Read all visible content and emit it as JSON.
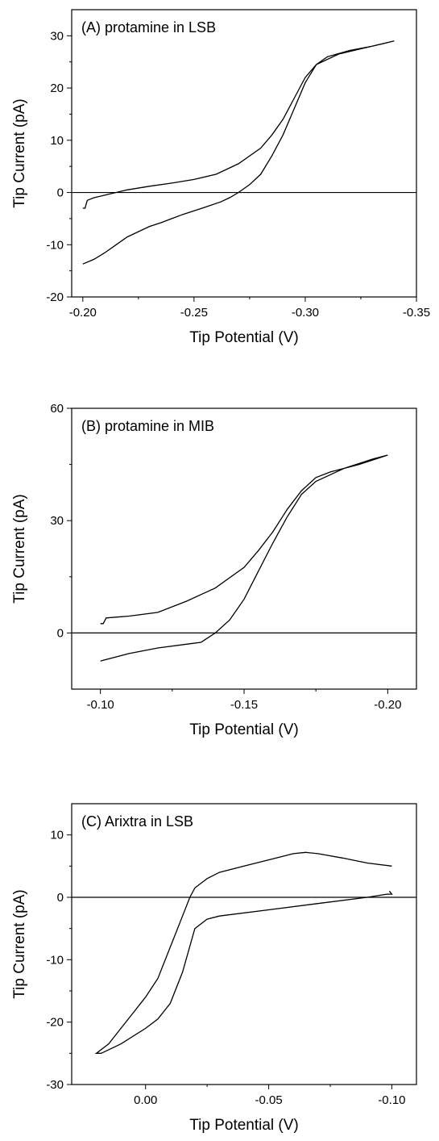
{
  "chart_data": [
    {
      "type": "line",
      "title": "(A) protamine in LSB",
      "xlabel": "Tip Potential (V)",
      "ylabel": "Tip Current (pA)",
      "xlim": [
        -0.195,
        -0.35
      ],
      "ylim": [
        -20,
        35
      ],
      "xticks": [
        -0.2,
        -0.25,
        -0.3,
        -0.35
      ],
      "xtick_labels": [
        "-0.20",
        "-0.25",
        "-0.30",
        "-0.35"
      ],
      "yticks": [
        -20,
        -10,
        0,
        10,
        20,
        30
      ],
      "ytick_labels": [
        "-20",
        "-10",
        "0",
        "10",
        "20",
        "30"
      ],
      "zero_line": 0,
      "series": [
        {
          "x": [
            -0.2,
            -0.201,
            -0.202,
            -0.205,
            -0.21,
            -0.215,
            -0.22,
            -0.23,
            -0.24,
            -0.25,
            -0.26,
            -0.27,
            -0.28,
            -0.285,
            -0.29,
            -0.295,
            -0.3,
            -0.305,
            -0.31,
            -0.32,
            -0.33,
            -0.34,
            -0.335,
            -0.325,
            -0.315,
            -0.305,
            -0.3,
            -0.295,
            -0.29,
            -0.285,
            -0.28,
            -0.275,
            -0.27,
            -0.266,
            -0.262,
            -0.255,
            -0.25,
            -0.245,
            -0.24,
            -0.235,
            -0.23,
            -0.225,
            -0.22,
            -0.215,
            -0.21,
            -0.205,
            -0.2
          ],
          "y": [
            -3,
            -3,
            -1.5,
            -1,
            -0.5,
            0,
            0.5,
            1.2,
            1.8,
            2.5,
            3.5,
            5.5,
            8.5,
            11,
            14,
            18,
            22,
            24.5,
            26,
            27.2,
            28,
            29,
            28.5,
            27.5,
            26.5,
            24.5,
            21,
            16,
            11,
            7,
            3.5,
            1.5,
            0,
            -1,
            -1.8,
            -2.8,
            -3.5,
            -4.2,
            -5,
            -5.8,
            -6.5,
            -7.5,
            -8.5,
            -10,
            -11.5,
            -12.8,
            -13.7
          ]
        }
      ]
    },
    {
      "type": "line",
      "title": "(B) protamine in MIB",
      "xlabel": "Tip Potential (V)",
      "ylabel": "Tip Current (pA)",
      "xlim": [
        -0.09,
        -0.21
      ],
      "ylim": [
        -15,
        60
      ],
      "xticks": [
        -0.1,
        -0.15,
        -0.2
      ],
      "xtick_labels": [
        "-0.10",
        "-0.15",
        "-0.20"
      ],
      "yticks": [
        0,
        30,
        60
      ],
      "ytick_labels": [
        "0",
        "30",
        "60"
      ],
      "zero_line": 0,
      "series": [
        {
          "x": [
            -0.1,
            -0.101,
            -0.102,
            -0.11,
            -0.12,
            -0.13,
            -0.14,
            -0.15,
            -0.155,
            -0.16,
            -0.165,
            -0.17,
            -0.175,
            -0.18,
            -0.19,
            -0.2,
            -0.195,
            -0.185,
            -0.175,
            -0.17,
            -0.165,
            -0.16,
            -0.155,
            -0.15,
            -0.145,
            -0.14,
            -0.135,
            -0.13,
            -0.12,
            -0.11,
            -0.1
          ],
          "y": [
            2.5,
            2.5,
            4,
            4.5,
            5.5,
            8.5,
            12,
            17.5,
            22,
            27,
            33,
            38,
            41.5,
            43,
            45,
            47.5,
            46.5,
            44,
            40.5,
            37,
            31,
            24,
            16.5,
            9,
            3.5,
            0,
            -2.5,
            -3,
            -4,
            -5.5,
            -7.5
          ]
        }
      ]
    },
    {
      "type": "line",
      "title": "(C) Arixtra in LSB",
      "xlabel": "Tip Potential (V)",
      "ylabel": "Tip Current (pA)",
      "xlim": [
        0.03,
        -0.11
      ],
      "ylim": [
        -30,
        15
      ],
      "xticks": [
        0,
        -0.05,
        -0.1
      ],
      "xtick_labels": [
        "0.00",
        "-0.05",
        "-0.10"
      ],
      "yticks": [
        -30,
        -20,
        -10,
        0,
        10
      ],
      "ytick_labels": [
        "-30",
        "-20",
        "-10",
        "0",
        "10"
      ],
      "zero_line": 0,
      "series": [
        {
          "x": [
            -0.1,
            -0.09,
            -0.08,
            -0.07,
            -0.065,
            -0.06,
            -0.05,
            -0.04,
            -0.03,
            -0.025,
            -0.02,
            -0.018,
            -0.015,
            -0.01,
            -0.005,
            0,
            0.005,
            0.01,
            0.015,
            0.02,
            0.018,
            0.01,
            0,
            -0.005,
            -0.01,
            -0.015,
            -0.02,
            -0.025,
            -0.03,
            -0.05,
            -0.07,
            -0.09,
            -0.098,
            -0.1,
            -0.099
          ],
          "y": [
            5,
            5.5,
            6.3,
            7,
            7.2,
            7,
            6,
            5,
            4,
            3,
            1.5,
            0,
            -3,
            -8,
            -13,
            -16,
            -18.5,
            -21,
            -23.5,
            -25,
            -25,
            -23.5,
            -21,
            -19.5,
            -17,
            -12,
            -5,
            -3.5,
            -3,
            -2,
            -1,
            0,
            0.5,
            0.5,
            1
          ]
        }
      ]
    }
  ]
}
